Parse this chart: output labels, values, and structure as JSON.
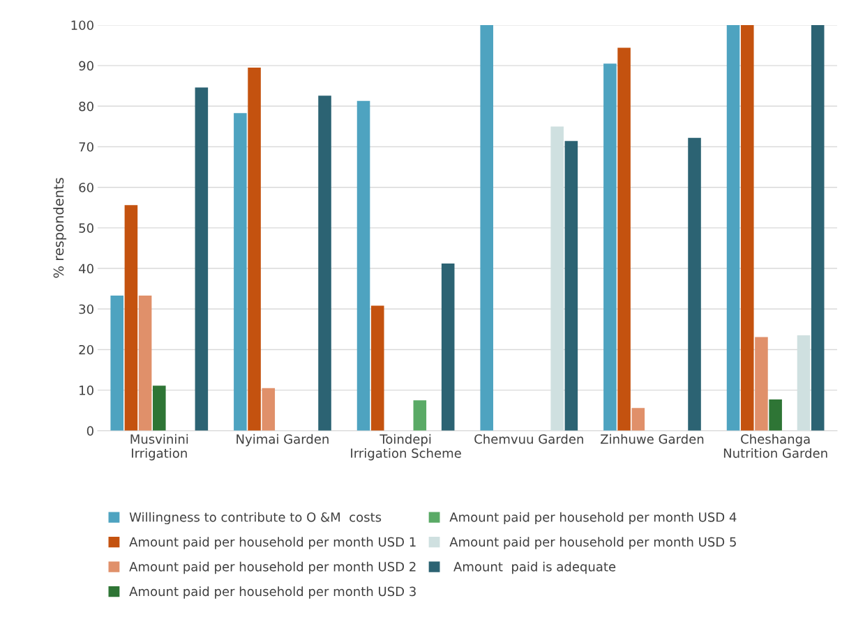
{
  "chart_data": {
    "type": "bar",
    "ylabel": "% respondents",
    "categories": [
      "Musvinini\nIrrigation",
      "Nyimai Garden",
      "Toindepi\nIrrigation Scheme",
      "Chemvuu Garden",
      "Zinhuwe Garden",
      "Cheshanga\nNutrition Garden"
    ],
    "series": [
      {
        "name": "Willingness to contribute to O &M  costs",
        "color": "#4ea3c0",
        "values": [
          33.3,
          78.3,
          81.3,
          100,
          90.5,
          100
        ]
      },
      {
        "name": "Amount paid per household per month USD 1",
        "color": "#c4520f",
        "values": [
          55.6,
          89.5,
          30.8,
          0,
          94.4,
          100
        ]
      },
      {
        "name": "Amount paid per household per month USD 2",
        "color": "#e0906a",
        "values": [
          33.3,
          10.5,
          0,
          0,
          5.6,
          23.1
        ]
      },
      {
        "name": "Amount paid per household per month USD 3",
        "color": "#2e7535",
        "values": [
          11.1,
          0,
          0,
          0,
          0,
          7.7
        ]
      },
      {
        "name": "Amount paid per household per month USD 4",
        "color": "#5aaa66",
        "values": [
          0,
          0,
          7.5,
          0,
          0,
          0
        ]
      },
      {
        "name": "Amount paid per household per month USD 5",
        "color": "#cfe0e0",
        "values": [
          0,
          0,
          0,
          75,
          0,
          23.5
        ]
      },
      {
        "name": " Amount  paid is adequate",
        "color": "#2c6373",
        "values": [
          84.6,
          82.6,
          41.2,
          71.4,
          72.2,
          100
        ]
      }
    ],
    "ylim": [
      0,
      100
    ],
    "yticks": [
      0,
      10,
      20,
      30,
      40,
      50,
      60,
      70,
      80,
      90,
      100
    ],
    "grid": "y",
    "legend": "bottom"
  }
}
